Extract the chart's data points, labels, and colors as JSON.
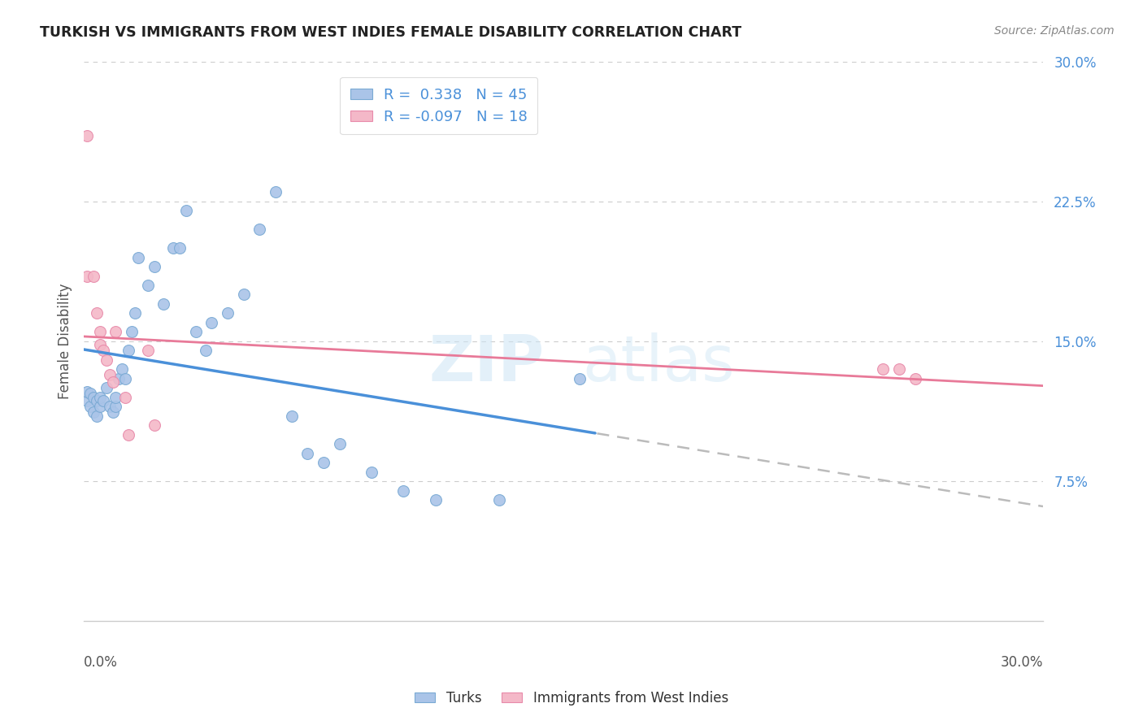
{
  "title": "TURKISH VS IMMIGRANTS FROM WEST INDIES FEMALE DISABILITY CORRELATION CHART",
  "source": "Source: ZipAtlas.com",
  "ylabel": "Female Disability",
  "xmin": 0.0,
  "xmax": 0.3,
  "ymin": 0.0,
  "ymax": 0.3,
  "yticks": [
    0.075,
    0.15,
    0.225,
    0.3
  ],
  "ytick_labels": [
    "7.5%",
    "15.0%",
    "22.5%",
    "30.0%"
  ],
  "grid_color": "#cccccc",
  "background_color": "#ffffff",
  "turks_color": "#aac4e8",
  "turks_edge_color": "#7aaad4",
  "west_indies_color": "#f4b8c8",
  "west_indies_edge_color": "#e88aaa",
  "turks_R": 0.338,
  "turks_N": 45,
  "west_indies_R": -0.097,
  "west_indies_N": 18,
  "legend_label_1": "Turks",
  "legend_label_2": "Immigrants from West Indies",
  "turks_line_color": "#4a90d9",
  "west_indies_line_color": "#e87a99",
  "turks_line_dashed_color": "#bbbbbb",
  "turks_x": [
    0.001,
    0.001,
    0.002,
    0.002,
    0.003,
    0.003,
    0.004,
    0.004,
    0.005,
    0.005,
    0.006,
    0.007,
    0.008,
    0.009,
    0.01,
    0.01,
    0.011,
    0.012,
    0.013,
    0.014,
    0.015,
    0.016,
    0.017,
    0.02,
    0.022,
    0.025,
    0.028,
    0.03,
    0.032,
    0.035,
    0.038,
    0.04,
    0.045,
    0.05,
    0.055,
    0.06,
    0.065,
    0.07,
    0.075,
    0.08,
    0.09,
    0.1,
    0.11,
    0.13,
    0.155
  ],
  "turks_y": [
    0.118,
    0.123,
    0.115,
    0.122,
    0.112,
    0.12,
    0.11,
    0.118,
    0.115,
    0.12,
    0.118,
    0.125,
    0.115,
    0.112,
    0.115,
    0.12,
    0.13,
    0.135,
    0.13,
    0.145,
    0.155,
    0.165,
    0.195,
    0.18,
    0.19,
    0.17,
    0.2,
    0.2,
    0.22,
    0.155,
    0.145,
    0.16,
    0.165,
    0.175,
    0.21,
    0.23,
    0.11,
    0.09,
    0.085,
    0.095,
    0.08,
    0.07,
    0.065,
    0.065,
    0.13
  ],
  "west_indies_x": [
    0.001,
    0.001,
    0.003,
    0.004,
    0.005,
    0.005,
    0.006,
    0.007,
    0.008,
    0.009,
    0.01,
    0.013,
    0.014,
    0.02,
    0.022,
    0.25,
    0.255,
    0.26
  ],
  "west_indies_y": [
    0.26,
    0.185,
    0.185,
    0.165,
    0.155,
    0.148,
    0.145,
    0.14,
    0.132,
    0.128,
    0.155,
    0.12,
    0.1,
    0.145,
    0.105,
    0.135,
    0.135,
    0.13
  ],
  "watermark_zip": "ZIP",
  "watermark_atlas": "atlas",
  "marker_size": 100
}
